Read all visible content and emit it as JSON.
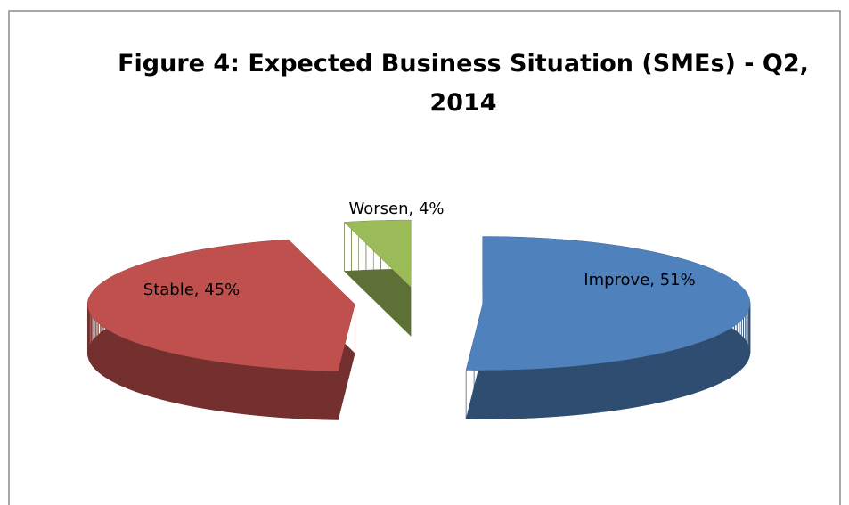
{
  "chart_data": {
    "type": "pie",
    "title": "Figure 4: Expected Business Situation (SMEs) - Q2, 2014",
    "values": [
      51,
      45,
      4
    ],
    "value_labels": [
      "Improve, 51%",
      "Stable, 45%",
      "Worsen, 4%"
    ],
    "colors": [
      "#4f81bd",
      "#c0504d",
      "#9bbb59"
    ],
    "3d": true,
    "exploded": true
  }
}
